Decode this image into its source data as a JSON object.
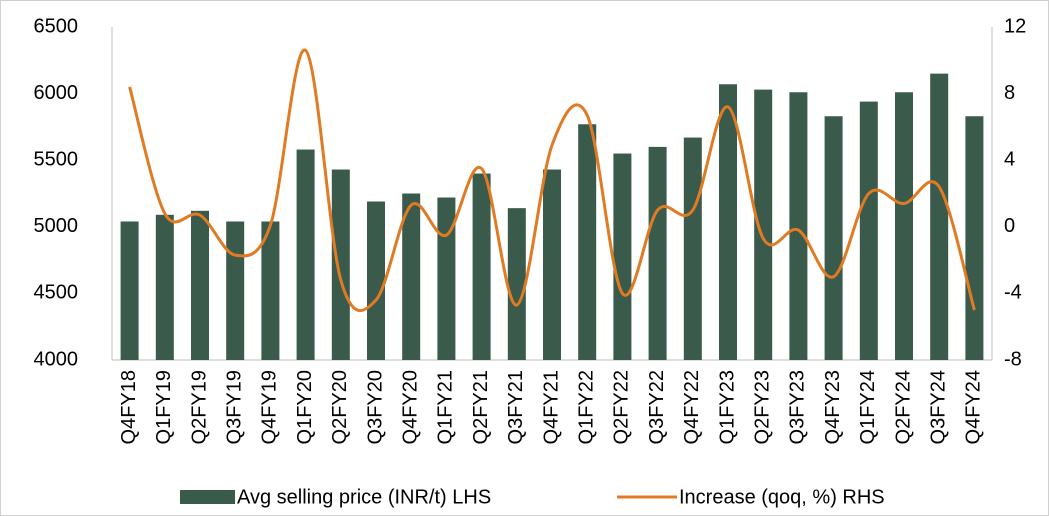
{
  "chart_data": {
    "type": "bar",
    "categories": [
      "Q4FY18",
      "Q1FY19",
      "Q2FY19",
      "Q3FY19",
      "Q4FY19",
      "Q1FY20",
      "Q2FY20",
      "Q3FY20",
      "Q4FY20",
      "Q1FY21",
      "Q2FY21",
      "Q3FY21",
      "Q4FY21",
      "Q1FY22",
      "Q2FY22",
      "Q3FY22",
      "Q4FY22",
      "Q1FY23",
      "Q2FY23",
      "Q3FY23",
      "Q4FY23",
      "Q1FY24",
      "Q2FY24",
      "Q3FY24",
      "Q4FY24"
    ],
    "series": [
      {
        "name": "Avg selling price (INR/t) LHS",
        "type": "bar",
        "color": "#3a5a4b",
        "values": [
          5040,
          5090,
          5120,
          5040,
          5040,
          5580,
          5430,
          5190,
          5250,
          5220,
          5400,
          5140,
          5430,
          5770,
          5550,
          5600,
          5670,
          6070,
          6030,
          6010,
          5830,
          5940,
          6010,
          6150,
          5830
        ]
      },
      {
        "name": "Increase (qoq, %) RHS",
        "type": "line",
        "axis": "y2",
        "color": "#e07b24",
        "values": [
          8.4,
          0.8,
          0.7,
          -1.7,
          0.1,
          10.6,
          -3.2,
          -4.4,
          1.3,
          -0.5,
          3.5,
          -4.7,
          4.9,
          6.7,
          -4.0,
          1.0,
          1.0,
          7.2,
          -0.7,
          -0.2,
          -3.0,
          2.0,
          1.4,
          2.4,
          -5.0
        ]
      }
    ],
    "ylim": [
      4000,
      6500
    ],
    "yticks": [
      4000,
      4500,
      5000,
      5500,
      6000,
      6500
    ],
    "y2lim": [
      -8,
      12
    ],
    "y2ticks": [
      -8,
      -4,
      0,
      4,
      8,
      12
    ],
    "legend": "bottom"
  }
}
